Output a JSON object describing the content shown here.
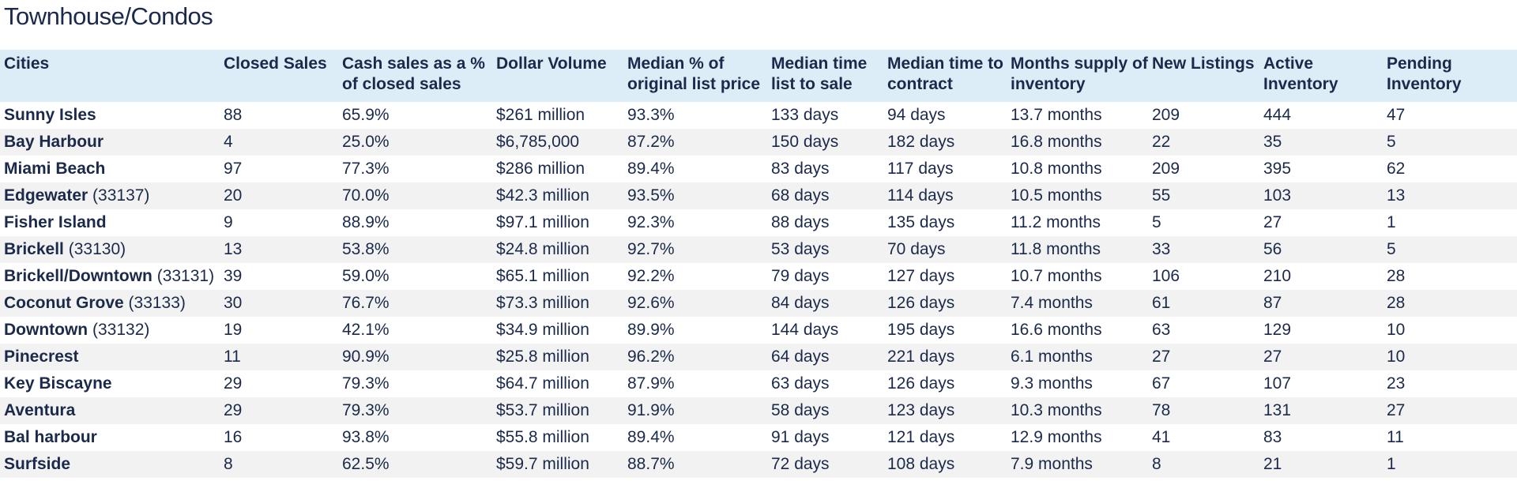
{
  "title": "Townhouse/Condos",
  "columns": [
    "Cities",
    "Closed Sales",
    "Cash sales as a % of closed sales",
    "Dollar Volume",
    "Median % of original list price",
    "Median time list to sale",
    "Median time to contract",
    "Months supply of inventory",
    "New Listings",
    "Active Inventory",
    "Pending Inventory"
  ],
  "rows": [
    {
      "city": "Sunny Isles",
      "zip": "",
      "closed": "88",
      "cash": "65.9%",
      "volume": "$261 million",
      "pct_list": "93.3%",
      "list_to_sale": "133 days",
      "to_contract": "94 days",
      "supply": "13.7 months",
      "new_listings": "209",
      "active": "444",
      "pending": "47"
    },
    {
      "city": "Bay Harbour",
      "zip": "",
      "closed": "4",
      "cash": "25.0%",
      "volume": "$6,785,000",
      "pct_list": "87.2%",
      "list_to_sale": "150 days",
      "to_contract": "182 days",
      "supply": "16.8 months",
      "new_listings": "22",
      "active": "35",
      "pending": "5"
    },
    {
      "city": "Miami Beach",
      "zip": "",
      "closed": "97",
      "cash": "77.3%",
      "volume": "$286 million",
      "pct_list": "89.4%",
      "list_to_sale": "83 days",
      "to_contract": "117 days",
      "supply": "10.8 months",
      "new_listings": "209",
      "active": "395",
      "pending": "62"
    },
    {
      "city": "Edgewater",
      "zip": "(33137)",
      "closed": "20",
      "cash": "70.0%",
      "volume": "$42.3 million",
      "pct_list": "93.5%",
      "list_to_sale": "68 days",
      "to_contract": "114 days",
      "supply": "10.5 months",
      "new_listings": "55",
      "active": "103",
      "pending": "13"
    },
    {
      "city": "Fisher Island",
      "zip": "",
      "closed": "9",
      "cash": "88.9%",
      "volume": "$97.1 million",
      "pct_list": "92.3%",
      "list_to_sale": "88 days",
      "to_contract": "135 days",
      "supply": "11.2 months",
      "new_listings": "5",
      "active": "27",
      "pending": "1"
    },
    {
      "city": "Brickell",
      "zip": "(33130)",
      "closed": "13",
      "cash": "53.8%",
      "volume": "$24.8 million",
      "pct_list": "92.7%",
      "list_to_sale": "53 days",
      "to_contract": "70 days",
      "supply": "11.8 months",
      "new_listings": "33",
      "active": "56",
      "pending": "5"
    },
    {
      "city": "Brickell/Downtown",
      "zip": "(33131)",
      "closed": "39",
      "cash": "59.0%",
      "volume": "$65.1 million",
      "pct_list": "92.2%",
      "list_to_sale": "79 days",
      "to_contract": "127 days",
      "supply": "10.7 months",
      "new_listings": "106",
      "active": "210",
      "pending": "28"
    },
    {
      "city": "Coconut Grove",
      "zip": "(33133)",
      "closed": "30",
      "cash": "76.7%",
      "volume": "$73.3 million",
      "pct_list": "92.6%",
      "list_to_sale": "84 days",
      "to_contract": "126 days",
      "supply": "7.4 months",
      "new_listings": "61",
      "active": "87",
      "pending": "28"
    },
    {
      "city": "Downtown",
      "zip": "(33132)",
      "closed": "19",
      "cash": "42.1%",
      "volume": "$34.9 million",
      "pct_list": "89.9%",
      "list_to_sale": "144 days",
      "to_contract": "195 days",
      "supply": "16.6 months",
      "new_listings": "63",
      "active": "129",
      "pending": "10"
    },
    {
      "city": "Pinecrest",
      "zip": "",
      "closed": "11",
      "cash": "90.9%",
      "volume": "$25.8 million",
      "pct_list": "96.2%",
      "list_to_sale": "64 days",
      "to_contract": "221 days",
      "supply": "6.1 months",
      "new_listings": "27",
      "active": "27",
      "pending": "10"
    },
    {
      "city": "Key Biscayne",
      "zip": "",
      "closed": "29",
      "cash": "79.3%",
      "volume": "$64.7 million",
      "pct_list": "87.9%",
      "list_to_sale": "63 days",
      "to_contract": "126 days",
      "supply": "9.3 months",
      "new_listings": "67",
      "active": "107",
      "pending": "23"
    },
    {
      "city": "Aventura",
      "zip": "",
      "closed": "29",
      "cash": "79.3%",
      "volume": "$53.7 million",
      "pct_list": "91.9%",
      "list_to_sale": "58 days",
      "to_contract": "123 days",
      "supply": "10.3 months",
      "new_listings": "78",
      "active": "131",
      "pending": "27"
    },
    {
      "city": "Bal harbour",
      "zip": "",
      "closed": "16",
      "cash": "93.8%",
      "volume": "$55.8 million",
      "pct_list": "89.4%",
      "list_to_sale": "91 days",
      "to_contract": "121 days",
      "supply": "12.9 months",
      "new_listings": "41",
      "active": "83",
      "pending": "11"
    },
    {
      "city": "Surfside",
      "zip": "",
      "closed": "8",
      "cash": "62.5%",
      "volume": "$59.7 million",
      "pct_list": "88.7%",
      "list_to_sale": "72 days",
      "to_contract": "108 days",
      "supply": "7.9 months",
      "new_listings": "8",
      "active": "21",
      "pending": "1"
    }
  ]
}
